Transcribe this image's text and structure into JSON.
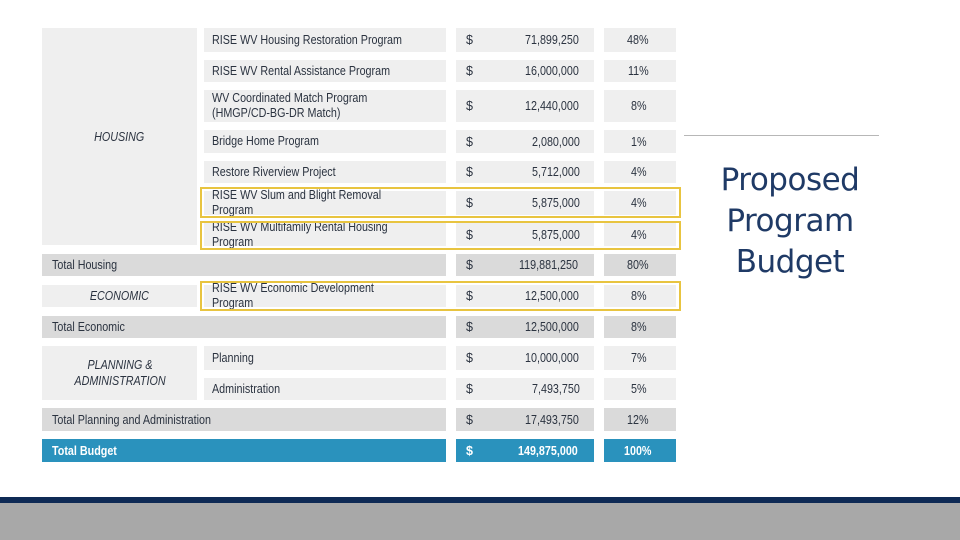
{
  "title": [
    "Proposed",
    "Program",
    "Budget"
  ],
  "categories": {
    "housing": "HOUSING",
    "economic": "ECONOMIC",
    "planning": "PLANNING & ADMINISTRATION"
  },
  "rows": [
    {
      "program": "RISE WV Housing Restoration Program",
      "currency": "$",
      "amount": "71,899,250",
      "percent": "48%"
    },
    {
      "program": "RISE WV Rental Assistance Program",
      "currency": "$",
      "amount": "16,000,000",
      "percent": "11%"
    },
    {
      "program": "WV Coordinated Match Program (HMGP/CD-BG-DR Match)",
      "currency": "$",
      "amount": "12,440,000",
      "percent": "8%"
    },
    {
      "program": "Bridge Home Program",
      "currency": "$",
      "amount": "2,080,000",
      "percent": "1%"
    },
    {
      "program": "Restore Riverview Project",
      "currency": "$",
      "amount": "5,712,000",
      "percent": "4%"
    },
    {
      "program": "RISE WV Slum and Blight Removal Program",
      "currency": "$",
      "amount": "5,875,000",
      "percent": "4%"
    },
    {
      "program": "RISE WV Multifamily Rental Housing Program",
      "currency": "$",
      "amount": "5,875,000",
      "percent": "4%"
    },
    {
      "program": "Total Housing",
      "currency": "$",
      "amount": "119,881,250",
      "percent": "80%"
    },
    {
      "program": "RISE WV Economic Development Program",
      "currency": "$",
      "amount": "12,500,000",
      "percent": "8%"
    },
    {
      "program": "Total Economic",
      "currency": "$",
      "amount": "12,500,000",
      "percent": "8%"
    },
    {
      "program": "Planning",
      "currency": "$",
      "amount": "10,000,000",
      "percent": "7%"
    },
    {
      "program": "Administration",
      "currency": "$",
      "amount": "7,493,750",
      "percent": "5%"
    },
    {
      "program": "Total Planning and Administration",
      "currency": "$",
      "amount": "17,493,750",
      "percent": "12%"
    },
    {
      "program": "Total Budget",
      "currency": "$",
      "amount": "149,875,000",
      "percent": "100%"
    }
  ],
  "colors": {
    "cell_bg": "#efefef",
    "total_bg": "#dadada",
    "grand_total_bg": "#2a92bd",
    "highlight": "#e8c440",
    "title": "#1f3a66",
    "footer_navy": "#0e2a55",
    "footer_gray": "#a8a8a8"
  }
}
